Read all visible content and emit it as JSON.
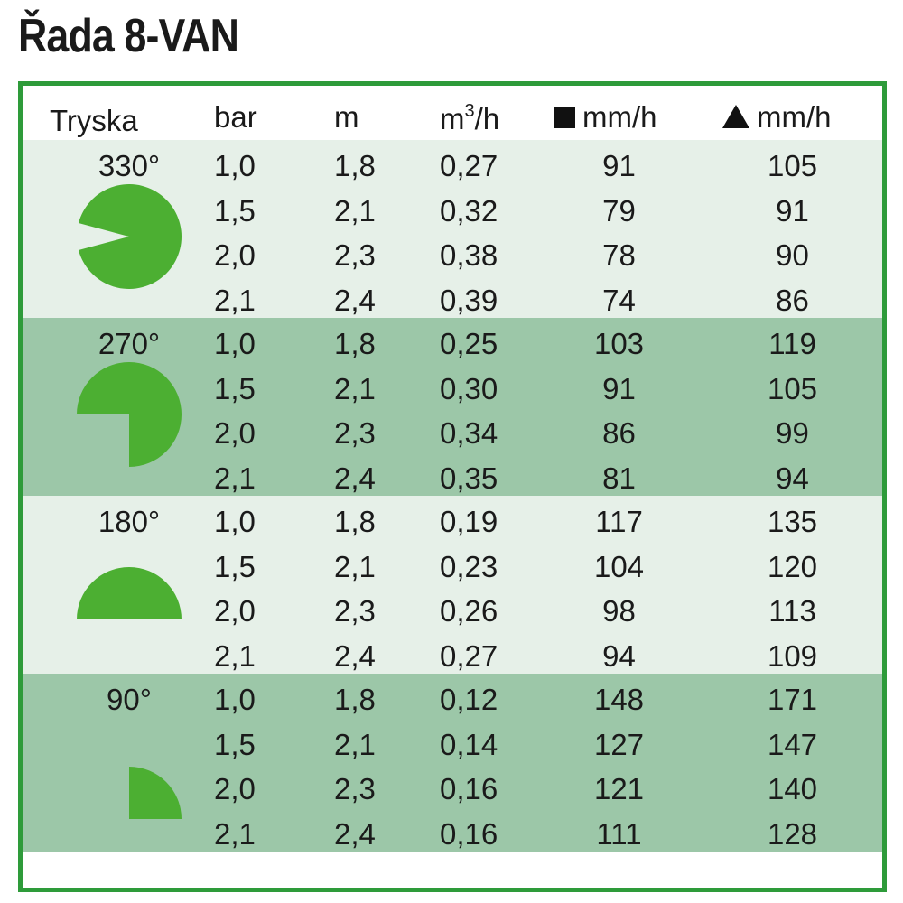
{
  "title": "Řada 8-VAN",
  "header": {
    "nozzle": "Tryska",
    "bar": "bar",
    "m": "m",
    "flow_base": "m",
    "flow_sup": "3",
    "flow_tail": "/h",
    "square_rate": "mm/h",
    "triangle_rate": "mm/h"
  },
  "colors": {
    "accent": "#2e9b3a",
    "icon": "#4caf32",
    "row_light": "#e6f0e8",
    "row_dark": "#9cc7a8"
  },
  "groups": [
    {
      "angle": "330°",
      "arc_degrees": 330,
      "rows": [
        {
          "bar": "1,0",
          "m": "1,8",
          "flow": "0,27",
          "square": "91",
          "triangle": "105"
        },
        {
          "bar": "1,5",
          "m": "2,1",
          "flow": "0,32",
          "square": "79",
          "triangle": "91"
        },
        {
          "bar": "2,0",
          "m": "2,3",
          "flow": "0,38",
          "square": "78",
          "triangle": "90"
        },
        {
          "bar": "2,1",
          "m": "2,4",
          "flow": "0,39",
          "square": "74",
          "triangle": "86"
        }
      ]
    },
    {
      "angle": "270°",
      "arc_degrees": 270,
      "rows": [
        {
          "bar": "1,0",
          "m": "1,8",
          "flow": "0,25",
          "square": "103",
          "triangle": "119"
        },
        {
          "bar": "1,5",
          "m": "2,1",
          "flow": "0,30",
          "square": "91",
          "triangle": "105"
        },
        {
          "bar": "2,0",
          "m": "2,3",
          "flow": "0,34",
          "square": "86",
          "triangle": "99"
        },
        {
          "bar": "2,1",
          "m": "2,4",
          "flow": "0,35",
          "square": "81",
          "triangle": "94"
        }
      ]
    },
    {
      "angle": "180°",
      "arc_degrees": 180,
      "rows": [
        {
          "bar": "1,0",
          "m": "1,8",
          "flow": "0,19",
          "square": "117",
          "triangle": "135"
        },
        {
          "bar": "1,5",
          "m": "2,1",
          "flow": "0,23",
          "square": "104",
          "triangle": "120"
        },
        {
          "bar": "2,0",
          "m": "2,3",
          "flow": "0,26",
          "square": "98",
          "triangle": "113"
        },
        {
          "bar": "2,1",
          "m": "2,4",
          "flow": "0,27",
          "square": "94",
          "triangle": "109"
        }
      ]
    },
    {
      "angle": "90°",
      "arc_degrees": 90,
      "rows": [
        {
          "bar": "1,0",
          "m": "1,8",
          "flow": "0,12",
          "square": "148",
          "triangle": "171"
        },
        {
          "bar": "1,5",
          "m": "2,1",
          "flow": "0,14",
          "square": "127",
          "triangle": "147"
        },
        {
          "bar": "2,0",
          "m": "2,3",
          "flow": "0,16",
          "square": "121",
          "triangle": "140"
        },
        {
          "bar": "2,1",
          "m": "2,4",
          "flow": "0,16",
          "square": "111",
          "triangle": "128"
        }
      ]
    }
  ]
}
